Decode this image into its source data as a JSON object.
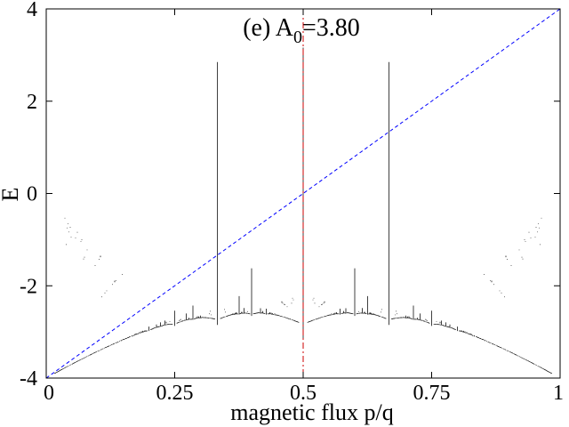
{
  "chart_data": {
    "type": "scatter",
    "title": {
      "prefix": "(e) A",
      "subscript": "0",
      "suffix": "=3.80"
    },
    "xlabel": "magnetic flux p/q",
    "ylabel": "E",
    "xlim": [
      0,
      1
    ],
    "ylim": [
      -4,
      4
    ],
    "xticks": [
      "0",
      "0.25",
      "0.5",
      "0.75",
      "1"
    ],
    "xtick_values": [
      0,
      0.25,
      0.5,
      0.75,
      1
    ],
    "yticks": [
      "-4",
      "-2",
      "0",
      "2",
      "4"
    ],
    "ytick_values": [
      -4,
      -2,
      0,
      2,
      4
    ],
    "grid": false,
    "legend": "none",
    "series": [
      {
        "kind": "energy spectrum (Hofstadter butterfly)",
        "color": "#000000",
        "max_denominator_q": 60
      }
    ],
    "reference_lines": [
      {
        "kind": "diagonal",
        "from": [
          0,
          -4
        ],
        "to": [
          1,
          4
        ],
        "color": "#0000ff",
        "style": "dashed"
      },
      {
        "kind": "vertical",
        "x": 0.5,
        "color": "#cc0000",
        "style": "dash-dot"
      }
    ]
  }
}
